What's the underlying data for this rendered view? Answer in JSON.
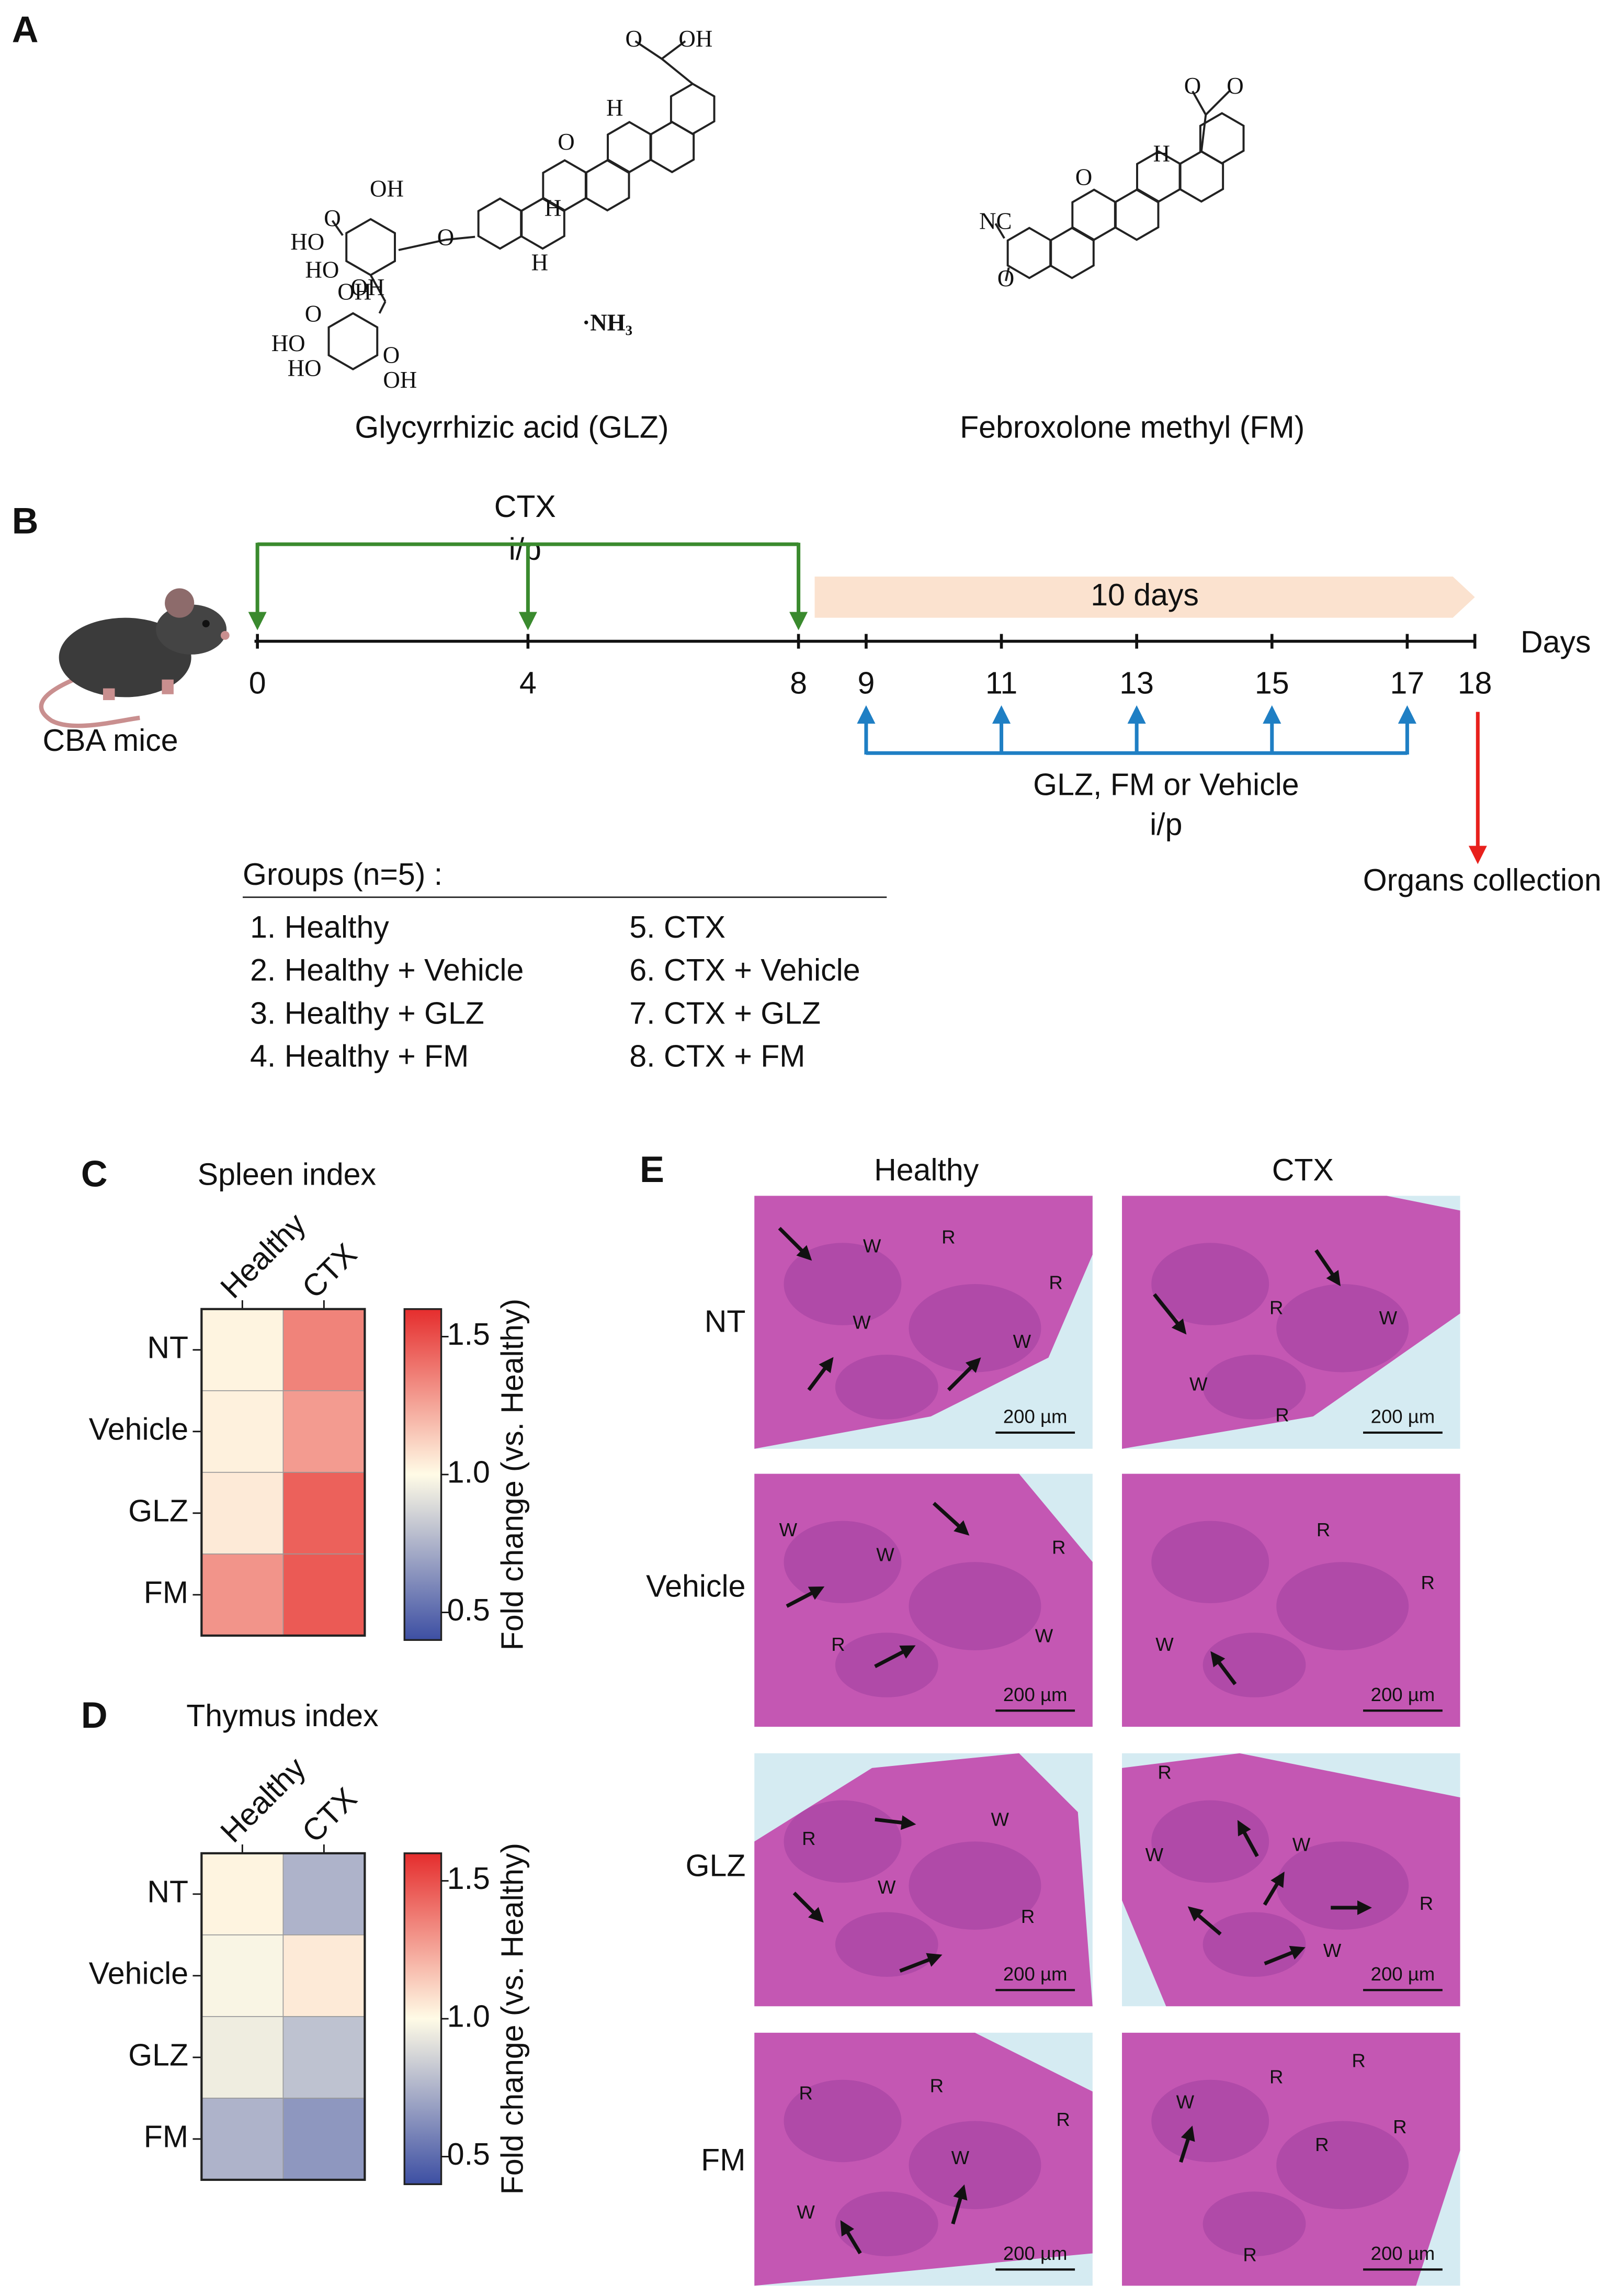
{
  "panel_a": {
    "label": "A",
    "compounds": [
      {
        "name": "Glycyrrhizic acid (GLZ)",
        "atoms": [
          "O",
          "OH",
          "H",
          "O",
          "OH",
          "O",
          "HO",
          "HO",
          "O",
          "OH",
          "H",
          "H",
          "O",
          "OH",
          "HO",
          "HO",
          "O",
          "OH",
          "·NH₃"
        ]
      },
      {
        "name": "Febroxolone methyl (FM)",
        "atoms": [
          "O",
          "O",
          "H",
          "O",
          "NC",
          "O"
        ]
      }
    ]
  },
  "panel_b": {
    "label": "B",
    "animal": "CBA mice",
    "axis_label": "Days",
    "days": [
      0,
      4,
      8,
      9,
      11,
      13,
      15,
      17,
      18
    ],
    "ctx": {
      "title": "CTX",
      "route": "i/p",
      "days": [
        0,
        4,
        8
      ]
    },
    "duration": "10 days",
    "treatment": {
      "title": "GLZ, FM or Vehicle",
      "route": "i/p",
      "days": [
        9,
        11,
        13,
        15,
        17
      ]
    },
    "collection": {
      "label": "Organs collection",
      "day": 18
    },
    "groups": {
      "title": "Groups (n=5) :",
      "items": [
        "1. Healthy",
        "2. Healthy + Vehicle",
        "3. Healthy + GLZ",
        "4. Healthy + FM",
        "5. CTX",
        "6. CTX + Vehicle",
        "7. CTX + GLZ",
        "8. CTX + FM"
      ]
    }
  },
  "panel_c": {
    "label": "C",
    "title": "Spleen index",
    "columns": [
      "Healthy",
      "CTX"
    ],
    "rows": [
      "NT",
      "Vehicle",
      "GLZ",
      "FM"
    ],
    "values": [
      [
        1.02,
        1.35
      ],
      [
        1.03,
        1.28
      ],
      [
        1.05,
        1.45
      ],
      [
        1.3,
        1.47
      ]
    ],
    "clim": [
      0.4,
      1.6
    ],
    "colormap": [
      "#3d4fa3",
      "#fffbe6",
      "#e52d2d"
    ],
    "cticks": [
      0.5,
      {
        "value": 1,
        "label": "1.0"
      },
      1.5
    ],
    "clabel": "Fold change (vs. Healthy)"
  },
  "panel_d": {
    "label": "D",
    "title": "Thymus index",
    "columns": [
      "Healthy",
      "CTX"
    ],
    "rows": [
      "NT",
      "Vehicle",
      "GLZ",
      "FM"
    ],
    "values": [
      [
        1.02,
        0.75
      ],
      [
        0.98,
        1.05
      ],
      [
        0.95,
        0.8
      ],
      [
        0.75,
        0.65
      ]
    ],
    "clim": [
      0.4,
      1.6
    ],
    "colormap": [
      "#3d4fa3",
      "#fffbe6",
      "#e52d2d"
    ],
    "cticks": [
      0.5,
      {
        "value": 1,
        "label": "1.0"
      },
      1.5
    ],
    "clabel": "Fold change (vs. Healthy)"
  },
  "panel_e": {
    "label": "E",
    "columns": [
      "Healthy",
      "CTX"
    ],
    "rows": [
      "NT",
      "Vehicle",
      "GLZ",
      "FM"
    ],
    "scale_bar": "200 µm",
    "images": [
      [
        {
          "labels": [
            "W",
            "R",
            "R",
            "W",
            "W"
          ]
        },
        {
          "labels": [
            "R",
            "W",
            "W",
            "R"
          ]
        }
      ],
      [
        {
          "labels": [
            "W",
            "W",
            "R",
            "R",
            "W"
          ]
        },
        {
          "labels": [
            "R",
            "R",
            "W"
          ]
        }
      ],
      [
        {
          "labels": [
            "W",
            "R",
            "W",
            "R"
          ]
        },
        {
          "labels": [
            "R",
            "W",
            "W",
            "R",
            "W"
          ]
        }
      ],
      [
        {
          "labels": [
            "R",
            "R",
            "R",
            "W",
            "W"
          ]
        },
        {
          "labels": [
            "R",
            "R",
            "W",
            "R",
            "R",
            "R"
          ]
        }
      ]
    ]
  }
}
